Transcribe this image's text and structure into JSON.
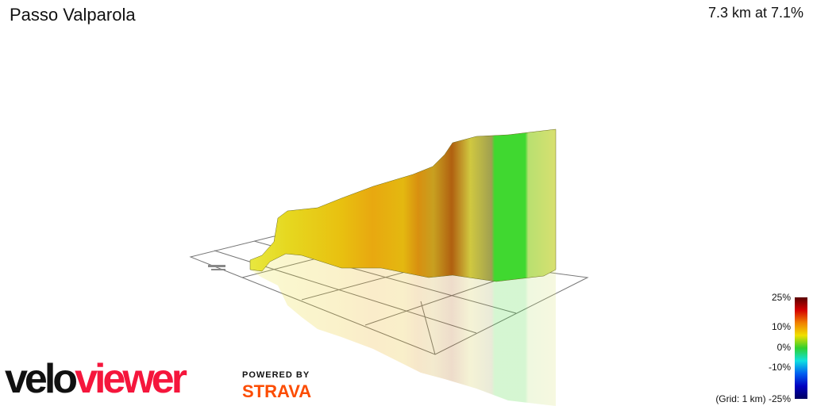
{
  "header": {
    "title": "Passo Valparola",
    "stats": "7.3 km at 7.1%"
  },
  "legend": {
    "labels": [
      "25%",
      "10%",
      "0%",
      "-10%",
      "(Grid: 1 km) -25%"
    ],
    "colors": [
      "#5a0000",
      "#d40000",
      "#f08000",
      "#f0e000",
      "#30d030",
      "#10e0e0",
      "#0060f0",
      "#0000c0",
      "#000060"
    ]
  },
  "branding": {
    "logo_part1": "velo",
    "logo_part2": "viewer",
    "powered_by": "POWERED BY",
    "strava": "STRAVA",
    "logo_colors": {
      "velo": "#111111",
      "viewer": "#f5163c",
      "strava": "#fc4c02"
    }
  }
}
